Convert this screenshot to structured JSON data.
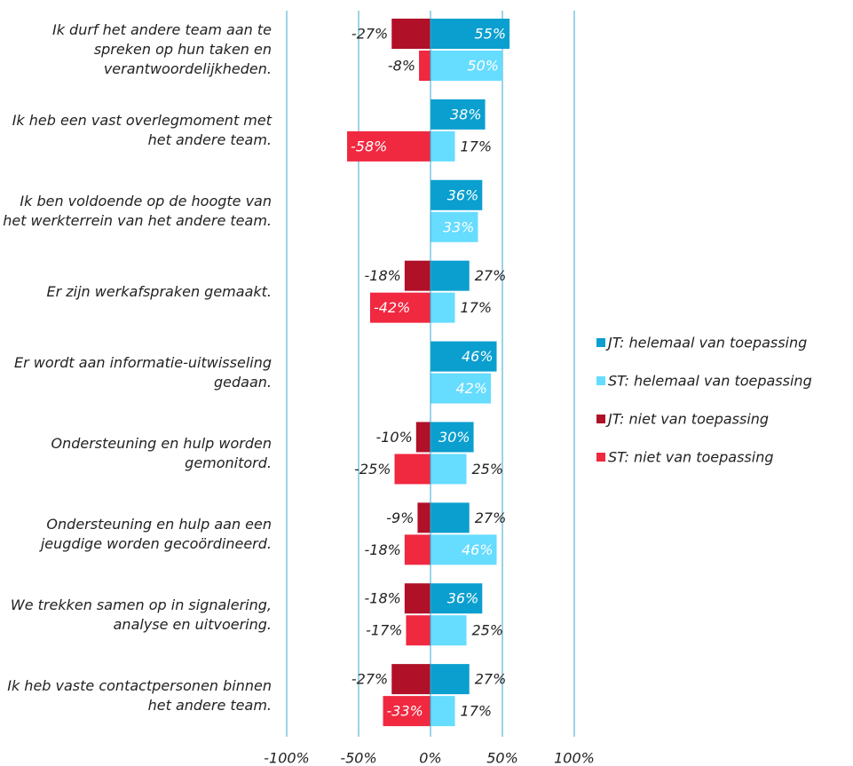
{
  "chart_data": {
    "type": "diverging_bar",
    "categories": [
      "Ik durf het andere team aan te spreken op hun taken en verantwoordelijkheden.",
      "Ik heb een vast overlegmoment met het andere team.",
      "Ik ben voldoende op de hoogte van het werkterrein van het andere team.",
      "Er zijn werkafspraken gemaakt.",
      "Er wordt aan informatie-uitwisseling gedaan.",
      "Ondersteuning en hulp worden gemonitord.",
      "Ondersteuning en hulp aan een jeugdige worden gecoördineerd.",
      "We trekken samen op in signalering, analyse en uitvoering.",
      "Ik heb vaste contactpersonen binnen het andere team."
    ],
    "series": [
      {
        "name": "JT: helemaal van toepassing",
        "color": "#0a9fcf",
        "values": [
          55,
          38,
          36,
          27,
          46,
          30,
          27,
          36,
          27
        ],
        "value_labels": [
          "55%",
          "38%",
          "36%",
          "27%",
          "46%",
          "30%",
          "27%",
          "36%",
          "27%"
        ]
      },
      {
        "name": "ST: helemaal van toepassing",
        "color": "#66dcff",
        "values": [
          50,
          17,
          33,
          17,
          42,
          25,
          46,
          25,
          17
        ],
        "value_labels": [
          "50%",
          "17%",
          "33%",
          "17%",
          "42%",
          "25%",
          "46%",
          "25%",
          "17%"
        ]
      },
      {
        "name": "JT: niet van toepassing",
        "color": "#b01028",
        "values": [
          -27,
          null,
          null,
          -18,
          null,
          -10,
          -9,
          -18,
          -27
        ],
        "value_labels": [
          "-27%",
          null,
          null,
          "-18%",
          null,
          "-10%",
          "-9%",
          "-18%",
          "-27%"
        ]
      },
      {
        "name": "ST: niet van toepassing",
        "color": "#f02840",
        "values": [
          -8,
          -58,
          null,
          -42,
          null,
          -25,
          -18,
          -17,
          -33
        ],
        "value_labels": [
          "-8%",
          "-58%",
          null,
          "-42%",
          null,
          "-25%",
          "-18%",
          "-17%",
          "-33%"
        ]
      }
    ],
    "xlim": [
      -100,
      100
    ],
    "xticks": [
      {
        "value": -100,
        "label": "-100%"
      },
      {
        "value": -50,
        "label": "-50%"
      },
      {
        "value": 0,
        "label": "0%"
      },
      {
        "value": 50,
        "label": "50%"
      },
      {
        "value": 100,
        "label": "100%"
      }
    ],
    "grid": true
  }
}
